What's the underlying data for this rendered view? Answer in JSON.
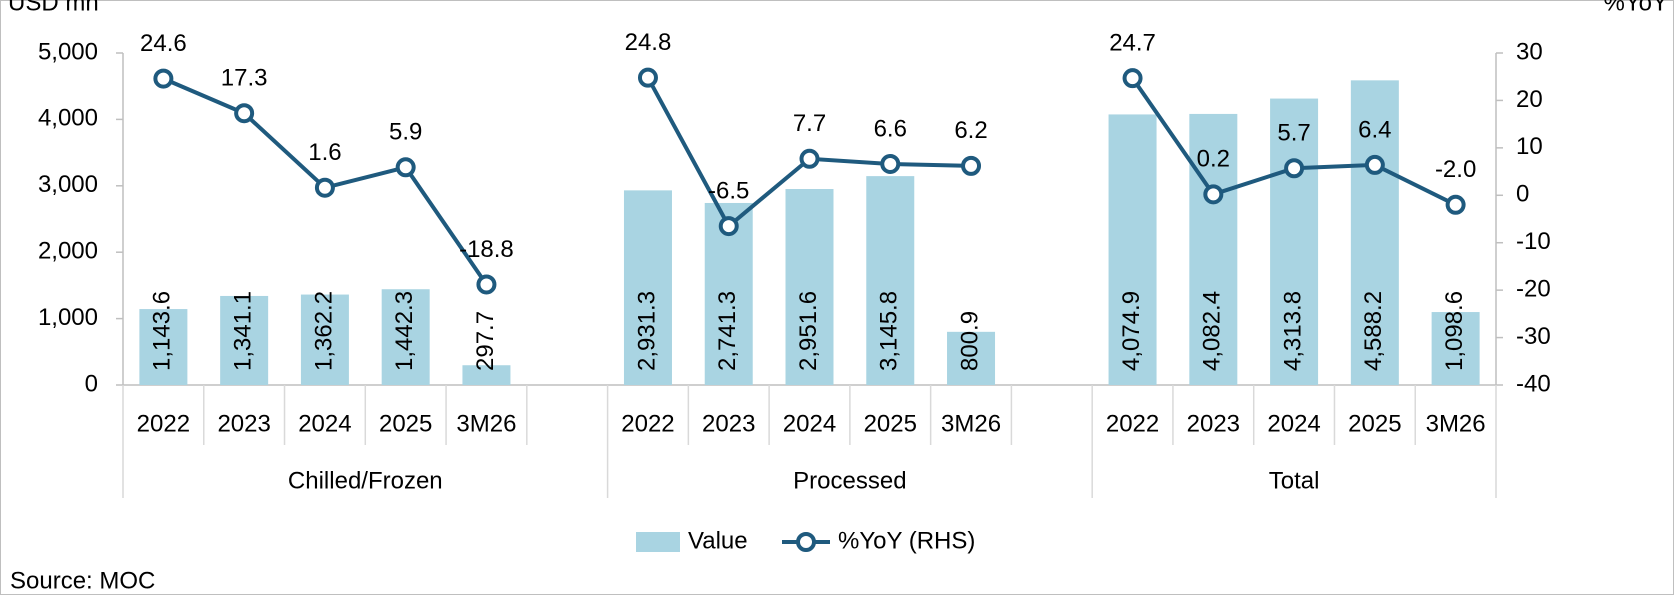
{
  "chart_data": {
    "type": "combo",
    "y_label": "USD mn",
    "y2_label": "%YoY",
    "source": "Source: MOC",
    "categories": [
      "2022",
      "2023",
      "2024",
      "2025",
      "3M26",
      null,
      "2022",
      "2023",
      "2024",
      "2025",
      "3M26",
      null,
      "2022",
      "2023",
      "2024",
      "2025",
      "3M26"
    ],
    "groups": [
      {
        "label": "Chilled/Frozen",
        "span": 6
      },
      {
        "label": "Processed",
        "span": 6
      },
      {
        "label": "Total",
        "span": 5
      }
    ],
    "series": [
      {
        "name": "Value",
        "type": "bar",
        "color": "#a9d4e2",
        "values": [
          1143.6,
          1341.1,
          1362.2,
          1442.3,
          297.7,
          null,
          2931.3,
          2741.3,
          2951.6,
          3145.8,
          800.9,
          null,
          4074.9,
          4082.4,
          4313.8,
          4588.2,
          1098.6
        ],
        "value_labels": [
          "1,143.6",
          "1,341.1",
          "1,362.2",
          "1,442.3",
          "297.7",
          null,
          "2,931.3",
          "2,741.3",
          "2,951.6",
          "3,145.8",
          "800.9",
          null,
          "4,074.9",
          "4,082.4",
          "4,313.8",
          "4,588.2",
          "1,098.6"
        ]
      },
      {
        "name": "%YoY (RHS)",
        "type": "line",
        "axis": "y2",
        "color": "#1f5a7e",
        "values": [
          24.6,
          17.3,
          1.6,
          5.9,
          -18.8,
          null,
          24.8,
          -6.5,
          7.7,
          6.6,
          6.2,
          null,
          24.7,
          0.2,
          5.7,
          6.4,
          -2.0
        ],
        "value_labels": [
          "24.6",
          "17.3",
          "1.6",
          "5.9",
          "-18.8",
          null,
          "24.8",
          "-6.5",
          "7.7",
          "6.6",
          "6.2",
          null,
          "24.7",
          "0.2",
          "5.7",
          "6.4",
          "-2.0"
        ]
      }
    ],
    "ylim": [
      0,
      5000
    ],
    "yticks": [
      0,
      {
        "value": 1000,
        "label": "1,000"
      },
      {
        "value": 2000,
        "label": "2,000"
      },
      {
        "value": 3000,
        "label": "3,000"
      },
      {
        "value": 4000,
        "label": "4,000"
      },
      {
        "value": 5000,
        "label": "5,000"
      }
    ],
    "y2lim": [
      -40,
      30
    ],
    "y2ticks": [
      -40,
      -30,
      -20,
      -10,
      0,
      10,
      20,
      30
    ],
    "negative_color": "#ff0000"
  }
}
